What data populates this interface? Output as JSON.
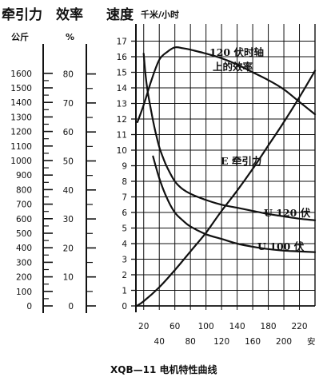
{
  "chart_data": {
    "type": "line",
    "title": "XQB—11  电机特性曲线",
    "headers": {
      "traction": "牵引力",
      "efficiency": "效率",
      "speed": "速度",
      "speed_unit": "千米/小时",
      "traction_unit": "公斤",
      "efficiency_unit": "%",
      "current_unit": "安"
    },
    "axes": {
      "traction_ticks": [
        0,
        100,
        200,
        300,
        400,
        500,
        600,
        700,
        800,
        900,
        1000,
        1100,
        1200,
        1300,
        1400,
        1500,
        1600
      ],
      "efficiency_ticks": [
        0,
        10,
        20,
        30,
        40,
        50,
        60,
        70,
        80
      ],
      "speed_ticks": [
        0,
        1,
        2,
        3,
        4,
        5,
        6,
        7,
        8,
        9,
        10,
        11,
        12,
        13,
        14,
        15,
        16,
        17
      ],
      "x_ticks_top": [
        20,
        60,
        100,
        140,
        180,
        220
      ],
      "x_ticks_bottom": [
        40,
        80,
        120,
        160,
        200
      ],
      "xlim": [
        10,
        240
      ],
      "speed_ylim": [
        0,
        17
      ]
    },
    "series": [
      {
        "name": "120 伏时轴上的效率",
        "x": [
          12,
          20,
          30,
          40,
          50,
          60,
          70,
          80,
          100,
          120,
          140,
          160,
          180,
          200,
          220,
          240
        ],
        "y": [
          11.8,
          12.9,
          14.5,
          15.8,
          16.3,
          16.6,
          16.55,
          16.45,
          16.2,
          15.9,
          15.5,
          15.0,
          14.5,
          13.9,
          13.1,
          12.3
        ]
      },
      {
        "name": "E 牵引力",
        "x": [
          11,
          20,
          40,
          60,
          80,
          100,
          120,
          140,
          160,
          180,
          200,
          220,
          240
        ],
        "y": [
          0,
          0.3,
          1.2,
          2.3,
          3.5,
          4.7,
          6.1,
          7.4,
          8.8,
          10.3,
          11.8,
          13.4,
          15.1
        ]
      },
      {
        "name": "U 120 伏",
        "x": [
          20,
          22,
          25,
          30,
          35,
          40,
          45,
          50,
          60,
          70,
          80,
          100,
          120,
          140,
          160,
          180,
          200,
          220,
          240
        ],
        "y": [
          16.2,
          15.0,
          13.8,
          12.4,
          11.2,
          10.2,
          9.5,
          8.9,
          8.0,
          7.5,
          7.2,
          6.8,
          6.5,
          6.3,
          6.1,
          5.9,
          5.75,
          5.6,
          5.5
        ]
      },
      {
        "name": "U 100 伏",
        "x": [
          32,
          40,
          50,
          60,
          70,
          80,
          100,
          120,
          140,
          160,
          180,
          200,
          220,
          240
        ],
        "y": [
          9.6,
          8.2,
          6.9,
          6.0,
          5.5,
          5.1,
          4.6,
          4.3,
          4.0,
          3.8,
          3.65,
          3.55,
          3.5,
          3.45
        ]
      }
    ],
    "annotations": {
      "efficiency_line1": "120  伏时轴",
      "efficiency_line2": "上的效率",
      "traction_label": "E 牵引力",
      "u120_label": "U   120 伏",
      "u100_label": "U    100 伏"
    },
    "grid": true
  }
}
